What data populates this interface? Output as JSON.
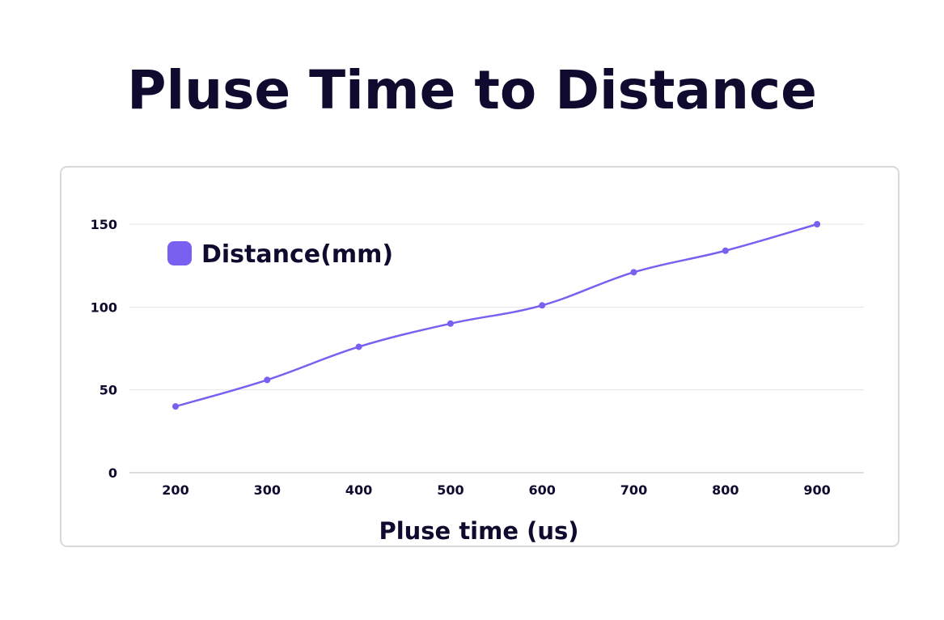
{
  "page": {
    "title": "Pluse Time to Distance"
  },
  "chart_data": {
    "type": "line",
    "title": "Pluse Time to Distance",
    "xlabel": "Pluse time (us)",
    "ylabel": "",
    "categories": [
      "200",
      "300",
      "400",
      "500",
      "600",
      "700",
      "800",
      "900"
    ],
    "series": [
      {
        "name": "Distance(mm)",
        "values": [
          40,
          56,
          76,
          90,
          101,
          121,
          134,
          150
        ],
        "color": "#7b5ff0"
      }
    ],
    "ylim": [
      0,
      150
    ],
    "yticks": [
      "0",
      "50",
      "100",
      "150"
    ],
    "grid": "horizontal",
    "legend_position": "top-left",
    "colors": {
      "line": "#7b5ff0",
      "text": "#0f0a2e",
      "grid": "#e6e6e6",
      "axis": "#bdbdbd"
    }
  }
}
